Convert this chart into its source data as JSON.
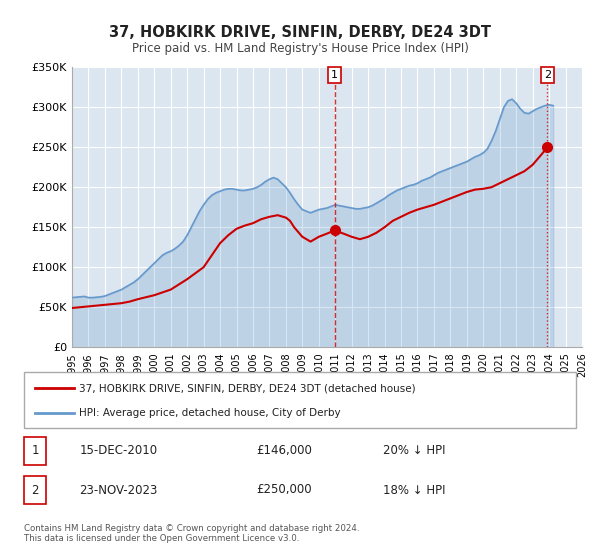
{
  "title": "37, HOBKIRK DRIVE, SINFIN, DERBY, DE24 3DT",
  "subtitle": "Price paid vs. HM Land Registry's House Price Index (HPI)",
  "ylabel": "",
  "background_color": "#ffffff",
  "plot_bg_color": "#dce6f0",
  "grid_color": "#ffffff",
  "ylim": [
    0,
    350000
  ],
  "xlim_start": 1995,
  "xlim_end": 2026,
  "yticks": [
    0,
    50000,
    100000,
    150000,
    200000,
    250000,
    300000,
    350000
  ],
  "ytick_labels": [
    "£0",
    "£50K",
    "£100K",
    "£150K",
    "£200K",
    "£250K",
    "£300K",
    "£350K"
  ],
  "xticks": [
    1995,
    1996,
    1997,
    1998,
    1999,
    2000,
    2001,
    2002,
    2003,
    2004,
    2005,
    2006,
    2007,
    2008,
    2009,
    2010,
    2011,
    2012,
    2013,
    2014,
    2015,
    2016,
    2017,
    2018,
    2019,
    2020,
    2021,
    2022,
    2023,
    2024,
    2025,
    2026
  ],
  "red_line_color": "#cc0000",
  "blue_line_color": "#6699cc",
  "marker1_x": 2010.96,
  "marker1_y": 146000,
  "marker2_x": 2023.9,
  "marker2_y": 250000,
  "vline1_x": 2010.96,
  "vline2_x": 2023.9,
  "annotation1_label": "1",
  "annotation2_label": "2",
  "legend_red_label": "37, HOBKIRK DRIVE, SINFIN, DERBY, DE24 3DT (detached house)",
  "legend_blue_label": "HPI: Average price, detached house, City of Derby",
  "table_row1": [
    "1",
    "15-DEC-2010",
    "£146,000",
    "20% ↓ HPI"
  ],
  "table_row2": [
    "2",
    "23-NOV-2023",
    "£250,000",
    "18% ↓ HPI"
  ],
  "footnote": "Contains HM Land Registry data © Crown copyright and database right 2024.\nThis data is licensed under the Open Government Licence v3.0.",
  "hpi_data_x": [
    1995.0,
    1995.25,
    1995.5,
    1995.75,
    1996.0,
    1996.25,
    1996.5,
    1996.75,
    1997.0,
    1997.25,
    1997.5,
    1997.75,
    1998.0,
    1998.25,
    1998.5,
    1998.75,
    1999.0,
    1999.25,
    1999.5,
    1999.75,
    2000.0,
    2000.25,
    2000.5,
    2000.75,
    2001.0,
    2001.25,
    2001.5,
    2001.75,
    2002.0,
    2002.25,
    2002.5,
    2002.75,
    2003.0,
    2003.25,
    2003.5,
    2003.75,
    2004.0,
    2004.25,
    2004.5,
    2004.75,
    2005.0,
    2005.25,
    2005.5,
    2005.75,
    2006.0,
    2006.25,
    2006.5,
    2006.75,
    2007.0,
    2007.25,
    2007.5,
    2007.75,
    2008.0,
    2008.25,
    2008.5,
    2008.75,
    2009.0,
    2009.25,
    2009.5,
    2009.75,
    2010.0,
    2010.25,
    2010.5,
    2010.75,
    2011.0,
    2011.25,
    2011.5,
    2011.75,
    2012.0,
    2012.25,
    2012.5,
    2012.75,
    2013.0,
    2013.25,
    2013.5,
    2013.75,
    2014.0,
    2014.25,
    2014.5,
    2014.75,
    2015.0,
    2015.25,
    2015.5,
    2015.75,
    2016.0,
    2016.25,
    2016.5,
    2016.75,
    2017.0,
    2017.25,
    2017.5,
    2017.75,
    2018.0,
    2018.25,
    2018.5,
    2018.75,
    2019.0,
    2019.25,
    2019.5,
    2019.75,
    2020.0,
    2020.25,
    2020.5,
    2020.75,
    2021.0,
    2021.25,
    2021.5,
    2021.75,
    2022.0,
    2022.25,
    2022.5,
    2022.75,
    2023.0,
    2023.25,
    2023.5,
    2023.75,
    2024.0,
    2024.25
  ],
  "hpi_data_y": [
    62000,
    62500,
    63000,
    63500,
    62000,
    62000,
    62500,
    63000,
    64000,
    66000,
    68000,
    70000,
    72000,
    75000,
    78000,
    81000,
    85000,
    90000,
    95000,
    100000,
    105000,
    110000,
    115000,
    118000,
    120000,
    123000,
    127000,
    132000,
    140000,
    150000,
    160000,
    170000,
    178000,
    185000,
    190000,
    193000,
    195000,
    197000,
    198000,
    198000,
    197000,
    196000,
    196000,
    197000,
    198000,
    200000,
    203000,
    207000,
    210000,
    212000,
    210000,
    205000,
    200000,
    193000,
    185000,
    178000,
    172000,
    170000,
    168000,
    170000,
    172000,
    173000,
    174000,
    176000,
    178000,
    177000,
    176000,
    175000,
    174000,
    173000,
    173000,
    174000,
    175000,
    177000,
    180000,
    183000,
    186000,
    190000,
    193000,
    196000,
    198000,
    200000,
    202000,
    203000,
    205000,
    208000,
    210000,
    212000,
    215000,
    218000,
    220000,
    222000,
    224000,
    226000,
    228000,
    230000,
    232000,
    235000,
    238000,
    240000,
    243000,
    248000,
    258000,
    270000,
    285000,
    300000,
    308000,
    310000,
    305000,
    298000,
    293000,
    292000,
    295000,
    298000,
    300000,
    302000,
    303000,
    302000
  ],
  "red_data_x": [
    1995.0,
    1995.5,
    1996.0,
    1996.5,
    1997.0,
    1997.5,
    1998.0,
    1998.5,
    1999.0,
    2000.0,
    2001.0,
    2002.0,
    2003.0,
    2003.5,
    2004.0,
    2004.5,
    2005.0,
    2005.5,
    2006.0,
    2006.5,
    2007.0,
    2007.5,
    2008.0,
    2008.25,
    2008.5,
    2009.0,
    2009.5,
    2010.0,
    2010.5,
    2010.96,
    2011.5,
    2012.0,
    2012.5,
    2013.0,
    2013.5,
    2014.0,
    2014.5,
    2015.0,
    2015.5,
    2016.0,
    2016.5,
    2017.0,
    2017.5,
    2018.0,
    2018.5,
    2019.0,
    2019.5,
    2020.0,
    2020.5,
    2021.0,
    2021.5,
    2022.0,
    2022.5,
    2023.0,
    2023.5,
    2023.9
  ],
  "red_data_y": [
    49000,
    50000,
    51000,
    52000,
    53000,
    54000,
    55000,
    57000,
    60000,
    65000,
    72000,
    85000,
    100000,
    115000,
    130000,
    140000,
    148000,
    152000,
    155000,
    160000,
    163000,
    165000,
    162000,
    158000,
    150000,
    138000,
    132000,
    138000,
    142000,
    146000,
    142000,
    138000,
    135000,
    138000,
    143000,
    150000,
    158000,
    163000,
    168000,
    172000,
    175000,
    178000,
    182000,
    186000,
    190000,
    194000,
    197000,
    198000,
    200000,
    205000,
    210000,
    215000,
    220000,
    228000,
    240000,
    250000
  ]
}
